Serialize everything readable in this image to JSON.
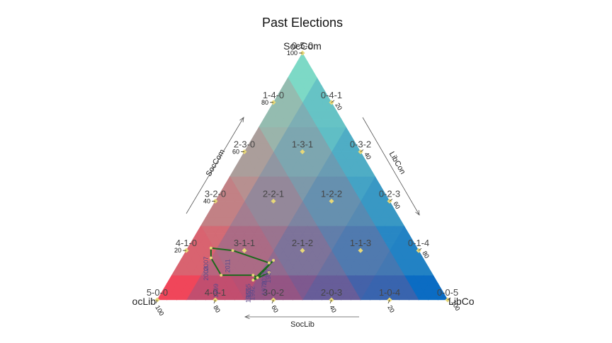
{
  "chart_data": {
    "type": "scatter",
    "subtype": "ternary",
    "title": "Past Elections",
    "vertices": {
      "top": "SocCom",
      "left": "SocLib",
      "right": "LibCon"
    },
    "vertex_labels_visible": {
      "top": "SocCom",
      "left": "ocLib",
      "right": "LibCo"
    },
    "axes": [
      {
        "name": "SocCom",
        "ticks": [
          "20",
          "40",
          "60",
          "80",
          "100"
        ]
      },
      {
        "name": "LibCon",
        "ticks": [
          "20",
          "40",
          "60",
          "80",
          "100"
        ]
      },
      {
        "name": "SocLib",
        "ticks": [
          "20",
          "40",
          "60",
          "80",
          "100"
        ]
      }
    ],
    "outcomes": [
      "0-5-0",
      "1-4-0",
      "0-4-1",
      "2-3-0",
      "1-3-1",
      "0-3-2",
      "3-2-0",
      "2-2-1",
      "1-2-2",
      "0-2-3",
      "4-1-0",
      "3-1-1",
      "2-1-2",
      "1-1-3",
      "0-1-4",
      "5-0-0",
      "4-0-1",
      "3-0-2",
      "2-0-3",
      "1-0-4",
      "0-0-5"
    ],
    "colors": {
      "SocCom": "#7dd9c6",
      "SocLib": "#f0465a",
      "LibCon": "#0b6cc3",
      "trajectory": "#1c6a1c",
      "point": "#e8d878"
    },
    "trajectory": [
      {
        "year": "1979",
        "soclib": 56,
        "soccom": 11,
        "libcon": 33
      },
      {
        "year": "1983",
        "soclib": 63,
        "soccom": 8,
        "libcon": 29
      },
      {
        "year": "1987",
        "soclib": 52,
        "soccom": 16,
        "libcon": 32
      },
      {
        "year": "1992",
        "soclib": 61,
        "soccom": 9,
        "libcon": 30
      },
      {
        "year": "1995",
        "soclib": 62,
        "soccom": 10,
        "libcon": 28
      },
      {
        "year": "1999",
        "soclib": 73,
        "soccom": 10,
        "libcon": 17
      },
      {
        "year": "2003",
        "soclib": 73,
        "soccom": 17,
        "libcon": 10
      },
      {
        "year": "2007",
        "soclib": 71,
        "soccom": 21,
        "libcon": 8
      },
      {
        "year": "2011",
        "soclib": 64,
        "soccom": 20,
        "libcon": 16
      },
      {
        "year": "2015",
        "soclib": 54,
        "soccom": 15,
        "libcon": 31
      }
    ]
  }
}
